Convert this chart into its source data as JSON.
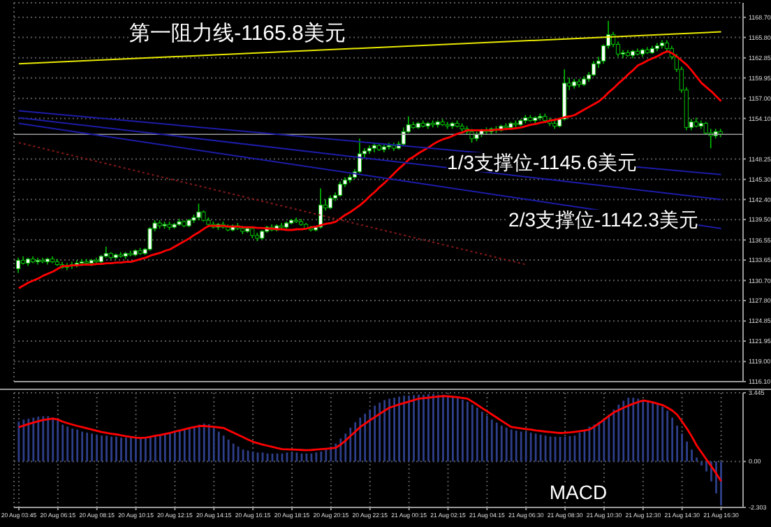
{
  "chart_data": [
    {
      "type": "candlestick",
      "color": "#00c000",
      "grid": true,
      "tick_labels": "y",
      "categories": [
        "20 Aug 03:45",
        null,
        null,
        null,
        null,
        null,
        null,
        null,
        "20 Aug 06:15",
        null,
        null,
        null,
        null,
        null,
        null,
        null,
        "20 Aug 08:15",
        null,
        null,
        null,
        null,
        null,
        null,
        null,
        "20 Aug 10:15",
        null,
        null,
        null,
        null,
        null,
        null,
        null,
        "20 Aug 12:15",
        null,
        null,
        null,
        null,
        null,
        null,
        null,
        "20 Aug 14:15",
        null,
        null,
        null,
        null,
        null,
        null,
        null,
        "20 Aug 16:15",
        null,
        null,
        null,
        null,
        null,
        null,
        null,
        "20 Aug 18:15",
        null,
        null,
        null,
        null,
        null,
        null,
        null,
        "20 Aug 20:15",
        null,
        null,
        null,
        null,
        null,
        null,
        null,
        "20 Aug 22:15",
        null,
        null,
        null,
        null,
        null,
        null,
        null,
        "21 Aug 00:15",
        null,
        null,
        null,
        null,
        null,
        null,
        null,
        "21 Aug 02:15",
        null,
        null,
        null,
        null,
        null,
        null,
        null,
        "21 Aug 04:15",
        null,
        null,
        null,
        null,
        null,
        null,
        null,
        "21 Aug 06:30",
        null,
        null,
        null,
        null,
        null,
        null,
        null,
        "21 Aug 08:30",
        null,
        null,
        null,
        null,
        null,
        null,
        null,
        "21 Aug 10:30",
        null,
        null,
        null,
        null,
        null,
        null,
        null,
        "21 Aug 12:30",
        null,
        null,
        null,
        null,
        null,
        null,
        null,
        "21 Aug 14:30",
        null,
        null,
        null,
        null,
        null,
        null,
        null,
        "21 Aug 16:30"
      ],
      "ylim": [
        1116.1,
        1170.8
      ],
      "yticks": [
        {
          "value": 1116.1,
          "label": "1116.10"
        },
        {
          "value": 1119.0,
          "label": "1119.00"
        },
        {
          "value": 1121.95,
          "label": "1121.95"
        },
        {
          "value": 1124.85,
          "label": "1124.85"
        },
        {
          "value": 1127.8,
          "label": "1127.80"
        },
        {
          "value": 1130.7,
          "label": "1130.70"
        },
        {
          "value": 1133.65,
          "label": "1133.65"
        },
        {
          "value": 1136.55,
          "label": "1136.55"
        },
        {
          "value": 1139.5,
          "label": "1139.50"
        },
        {
          "value": 1142.4,
          "label": "1142.40"
        },
        {
          "value": 1145.3,
          "label": "1145.30"
        },
        {
          "value": 1148.25,
          "label": "1148.25"
        },
        {
          "value": 1154.1,
          "label": "1154.10"
        },
        {
          "value": 1157.0,
          "label": "1157.00"
        },
        {
          "value": 1159.95,
          "label": "1159.95"
        },
        {
          "value": 1162.85,
          "label": "1162.85"
        },
        {
          "value": 1165.8,
          "label": "1165.80"
        },
        {
          "value": 1168.7,
          "label": "1168.70"
        }
      ],
      "ohlc": [
        [
          1132.4,
          1134.0,
          1131.8,
          1133.6
        ],
        [
          1133.6,
          1134.2,
          1133.0,
          1133.2
        ],
        [
          1133.2,
          1134.0,
          1132.8,
          1133.8
        ],
        [
          1133.8,
          1134.2,
          1133.2,
          1133.4
        ],
        [
          1133.4,
          1134.0,
          1133.0,
          1133.6
        ],
        [
          1133.6,
          1134.0,
          1133.2,
          1133.4
        ],
        [
          1133.4,
          1134.0,
          1133.0,
          1133.8
        ],
        [
          1133.8,
          1134.2,
          1133.2,
          1133.4
        ],
        [
          1133.4,
          1133.8,
          1132.8,
          1133.0
        ],
        [
          1133.0,
          1133.4,
          1132.4,
          1132.6
        ],
        [
          1132.6,
          1133.2,
          1132.2,
          1132.8
        ],
        [
          1132.8,
          1133.4,
          1132.4,
          1133.0
        ],
        [
          1133.0,
          1133.6,
          1132.6,
          1133.2
        ],
        [
          1133.2,
          1133.8,
          1132.8,
          1133.4
        ],
        [
          1133.4,
          1133.8,
          1133.0,
          1133.2
        ],
        [
          1133.2,
          1133.8,
          1132.8,
          1133.6
        ],
        [
          1133.6,
          1134.0,
          1133.2,
          1133.4
        ],
        [
          1133.4,
          1134.4,
          1133.2,
          1134.2
        ],
        [
          1134.2,
          1135.6,
          1134.0,
          1134.6
        ],
        [
          1134.6,
          1134.8,
          1133.8,
          1134.0
        ],
        [
          1134.0,
          1134.6,
          1133.8,
          1134.4
        ],
        [
          1134.4,
          1134.8,
          1134.0,
          1134.2
        ],
        [
          1134.2,
          1134.8,
          1133.8,
          1134.6
        ],
        [
          1134.6,
          1135.0,
          1134.2,
          1134.4
        ],
        [
          1134.4,
          1135.2,
          1134.2,
          1135.0
        ],
        [
          1135.0,
          1135.4,
          1134.4,
          1134.6
        ],
        [
          1134.6,
          1135.4,
          1134.4,
          1135.2
        ],
        [
          1135.2,
          1138.4,
          1135.0,
          1138.2
        ],
        [
          1138.2,
          1139.4,
          1137.8,
          1139.0
        ],
        [
          1139.0,
          1139.4,
          1138.2,
          1138.6
        ],
        [
          1138.6,
          1139.2,
          1138.2,
          1138.8
        ],
        [
          1138.8,
          1139.2,
          1138.0,
          1138.4
        ],
        [
          1138.4,
          1139.0,
          1138.2,
          1138.8
        ],
        [
          1138.8,
          1139.6,
          1138.6,
          1139.2
        ],
        [
          1139.2,
          1139.4,
          1138.4,
          1138.6
        ],
        [
          1138.6,
          1139.6,
          1138.4,
          1139.4
        ],
        [
          1139.4,
          1140.2,
          1139.0,
          1139.8
        ],
        [
          1139.8,
          1141.8,
          1139.4,
          1140.6
        ],
        [
          1140.6,
          1140.8,
          1139.2,
          1139.4
        ],
        [
          1139.4,
          1139.8,
          1138.6,
          1138.8
        ],
        [
          1138.8,
          1139.2,
          1138.2,
          1138.4
        ],
        [
          1138.4,
          1139.0,
          1138.0,
          1138.8
        ],
        [
          1138.8,
          1139.2,
          1138.2,
          1138.4
        ],
        [
          1138.4,
          1138.8,
          1137.8,
          1138.0
        ],
        [
          1138.0,
          1138.8,
          1137.8,
          1138.6
        ],
        [
          1138.6,
          1139.0,
          1138.0,
          1138.2
        ],
        [
          1138.2,
          1138.6,
          1137.4,
          1137.8
        ],
        [
          1137.8,
          1138.4,
          1137.6,
          1138.2
        ],
        [
          1138.2,
          1138.4,
          1136.8,
          1137.2
        ],
        [
          1137.2,
          1137.6,
          1136.4,
          1136.8
        ],
        [
          1136.8,
          1138.0,
          1136.6,
          1137.8
        ],
        [
          1137.8,
          1138.6,
          1137.6,
          1138.4
        ],
        [
          1138.4,
          1138.8,
          1137.8,
          1138.0
        ],
        [
          1138.0,
          1138.8,
          1137.8,
          1138.6
        ],
        [
          1138.6,
          1139.0,
          1138.2,
          1138.4
        ],
        [
          1138.4,
          1139.2,
          1138.2,
          1139.0
        ],
        [
          1139.0,
          1139.6,
          1138.8,
          1139.4
        ],
        [
          1139.4,
          1139.8,
          1139.0,
          1139.2
        ],
        [
          1139.2,
          1139.6,
          1138.6,
          1138.8
        ],
        [
          1138.8,
          1139.0,
          1138.0,
          1138.2
        ],
        [
          1138.2,
          1138.6,
          1137.8,
          1138.0
        ],
        [
          1138.0,
          1138.6,
          1137.8,
          1138.4
        ],
        [
          1138.4,
          1144.0,
          1138.2,
          1141.6
        ],
        [
          1141.6,
          1142.4,
          1140.8,
          1141.2
        ],
        [
          1141.2,
          1143.0,
          1141.0,
          1142.6
        ],
        [
          1142.6,
          1143.4,
          1142.2,
          1143.0
        ],
        [
          1143.0,
          1145.0,
          1142.8,
          1144.6
        ],
        [
          1144.6,
          1145.6,
          1144.2,
          1145.2
        ],
        [
          1145.2,
          1146.0,
          1144.8,
          1145.6
        ],
        [
          1145.6,
          1146.8,
          1145.4,
          1146.4
        ],
        [
          1146.4,
          1151.2,
          1146.2,
          1149.0
        ],
        [
          1149.0,
          1149.8,
          1148.4,
          1149.4
        ],
        [
          1149.4,
          1150.2,
          1149.0,
          1149.8
        ],
        [
          1149.8,
          1150.6,
          1149.2,
          1150.2
        ],
        [
          1150.2,
          1150.4,
          1149.4,
          1149.6
        ],
        [
          1149.6,
          1150.4,
          1149.2,
          1150.0
        ],
        [
          1150.0,
          1150.6,
          1149.6,
          1150.2
        ],
        [
          1150.2,
          1150.6,
          1149.4,
          1149.8
        ],
        [
          1149.8,
          1150.8,
          1149.6,
          1150.4
        ],
        [
          1150.4,
          1152.8,
          1150.2,
          1152.2
        ],
        [
          1152.2,
          1154.4,
          1152.0,
          1153.2
        ],
        [
          1153.2,
          1153.6,
          1152.6,
          1152.8
        ],
        [
          1152.8,
          1153.6,
          1152.6,
          1153.4
        ],
        [
          1153.4,
          1153.8,
          1152.8,
          1153.0
        ],
        [
          1153.0,
          1153.6,
          1152.6,
          1153.4
        ],
        [
          1153.4,
          1153.8,
          1152.8,
          1153.2
        ],
        [
          1153.2,
          1153.8,
          1152.8,
          1153.6
        ],
        [
          1153.6,
          1154.0,
          1153.0,
          1153.2
        ],
        [
          1153.2,
          1153.6,
          1152.6,
          1153.0
        ],
        [
          1153.0,
          1153.6,
          1152.6,
          1153.4
        ],
        [
          1153.4,
          1153.8,
          1152.8,
          1153.0
        ],
        [
          1153.0,
          1153.4,
          1152.2,
          1152.6
        ],
        [
          1152.6,
          1153.0,
          1151.8,
          1152.2
        ],
        [
          1152.2,
          1152.6,
          1150.6,
          1151.2
        ],
        [
          1151.2,
          1152.2,
          1150.8,
          1151.8
        ],
        [
          1151.8,
          1152.6,
          1151.4,
          1152.4
        ],
        [
          1152.4,
          1152.8,
          1151.8,
          1152.2
        ],
        [
          1152.2,
          1152.8,
          1151.8,
          1152.6
        ],
        [
          1152.6,
          1153.0,
          1152.0,
          1152.4
        ],
        [
          1152.4,
          1153.2,
          1152.2,
          1153.0
        ],
        [
          1153.0,
          1153.4,
          1152.4,
          1152.8
        ],
        [
          1152.8,
          1153.6,
          1152.6,
          1153.4
        ],
        [
          1153.4,
          1153.8,
          1152.8,
          1153.2
        ],
        [
          1153.2,
          1154.0,
          1153.0,
          1153.8
        ],
        [
          1153.8,
          1154.6,
          1153.4,
          1154.2
        ],
        [
          1154.2,
          1154.6,
          1153.6,
          1153.8
        ],
        [
          1153.8,
          1154.4,
          1153.4,
          1154.2
        ],
        [
          1154.2,
          1154.8,
          1153.8,
          1154.4
        ],
        [
          1154.4,
          1154.8,
          1153.6,
          1153.8
        ],
        [
          1153.8,
          1154.2,
          1153.0,
          1153.4
        ],
        [
          1153.4,
          1153.8,
          1152.6,
          1153.0
        ],
        [
          1153.0,
          1154.2,
          1152.8,
          1154.0
        ],
        [
          1154.0,
          1161.2,
          1153.8,
          1159.2
        ],
        [
          1159.2,
          1160.0,
          1158.2,
          1158.8
        ],
        [
          1158.8,
          1159.8,
          1158.4,
          1159.4
        ],
        [
          1159.4,
          1159.8,
          1158.6,
          1159.0
        ],
        [
          1159.0,
          1160.2,
          1158.8,
          1159.8
        ],
        [
          1159.8,
          1160.8,
          1159.4,
          1160.4
        ],
        [
          1160.4,
          1162.4,
          1160.2,
          1162.0
        ],
        [
          1162.0,
          1163.0,
          1161.4,
          1162.4
        ],
        [
          1162.4,
          1164.8,
          1162.0,
          1164.6
        ],
        [
          1164.6,
          1168.2,
          1164.2,
          1166.2
        ],
        [
          1166.2,
          1166.6,
          1164.4,
          1164.8
        ],
        [
          1164.8,
          1165.2,
          1163.0,
          1163.4
        ],
        [
          1163.4,
          1164.0,
          1162.8,
          1163.6
        ],
        [
          1163.6,
          1164.0,
          1163.0,
          1163.2
        ],
        [
          1163.2,
          1164.0,
          1162.8,
          1163.8
        ],
        [
          1163.8,
          1164.2,
          1163.2,
          1163.4
        ],
        [
          1163.4,
          1164.2,
          1163.0,
          1164.0
        ],
        [
          1164.0,
          1164.4,
          1163.4,
          1163.6
        ],
        [
          1163.6,
          1164.6,
          1163.4,
          1164.2
        ],
        [
          1164.2,
          1165.0,
          1163.8,
          1164.6
        ],
        [
          1164.6,
          1165.4,
          1164.2,
          1165.0
        ],
        [
          1165.0,
          1165.4,
          1163.8,
          1164.2
        ],
        [
          1164.2,
          1164.6,
          1162.6,
          1163.0
        ],
        [
          1163.0,
          1163.4,
          1160.8,
          1161.2
        ],
        [
          1161.2,
          1161.6,
          1157.8,
          1158.2
        ],
        [
          1158.2,
          1158.6,
          1152.4,
          1152.8
        ],
        [
          1152.8,
          1154.0,
          1152.4,
          1153.6
        ],
        [
          1153.6,
          1154.2,
          1152.8,
          1153.0
        ],
        [
          1153.0,
          1153.8,
          1152.6,
          1153.4
        ],
        [
          1153.4,
          1153.6,
          1151.8,
          1152.0
        ],
        [
          1152.0,
          1152.6,
          1149.8,
          1151.6
        ],
        [
          1151.6,
          1152.6,
          1151.2,
          1152.2
        ],
        [
          1152.2,
          1152.6,
          1151.4,
          1151.8
        ]
      ],
      "series": [
        {
          "type": "line",
          "color": "#ff0000",
          "values": [
            1129.6,
            1130.0,
            1130.4,
            1130.7,
            1131.0,
            1131.4,
            1131.7,
            1132.0,
            1132.4,
            1132.8,
            1132.8,
            1132.9,
            1132.9,
            1133.0,
            1133.0,
            1133.0,
            1133.1,
            1133.1,
            1133.2,
            1133.2,
            1133.3,
            1133.3,
            1133.4,
            1133.4,
            1133.6,
            1133.8,
            1134.0,
            1134.3,
            1134.5,
            1134.7,
            1135.0,
            1135.2,
            1135.6,
            1136.0,
            1136.4,
            1136.8,
            1137.3,
            1137.7,
            1138.2,
            1138.6,
            1138.6,
            1138.6,
            1138.6,
            1138.5,
            1138.5,
            1138.5,
            1138.4,
            1138.4,
            1138.4,
            1138.3,
            1138.3,
            1138.2,
            1138.2,
            1138.1,
            1138.1,
            1138.0,
            1138.0,
            1138.1,
            1138.1,
            1138.2,
            1138.4,
            1138.5,
            1138.7,
            1138.9,
            1139.0,
            1139.2,
            1139.7,
            1140.2,
            1140.6,
            1141.1,
            1141.6,
            1142.2,
            1142.9,
            1143.5,
            1144.2,
            1144.8,
            1145.5,
            1146.2,
            1146.9,
            1147.5,
            1148.2,
            1148.6,
            1149.1,
            1149.5,
            1149.9,
            1150.4,
            1150.8,
            1151.1,
            1151.3,
            1151.6,
            1151.9,
            1152.1,
            1152.4,
            1152.4,
            1152.4,
            1152.4,
            1152.4,
            1152.4,
            1152.5,
            1152.5,
            1152.6,
            1152.6,
            1152.7,
            1152.8,
            1153.0,
            1153.2,
            1153.3,
            1153.5,
            1153.6,
            1153.8,
            1153.9,
            1154.1,
            1154.3,
            1154.4,
            1154.6,
            1155.0,
            1155.4,
            1155.8,
            1156.2,
            1156.6,
            1157.2,
            1157.9,
            1158.5,
            1159.2,
            1159.8,
            1160.5,
            1161.1,
            1161.8,
            1162.1,
            1162.5,
            1162.8,
            1163.1,
            1163.5,
            1163.8,
            1163.5,
            1163.0,
            1162.4,
            1161.8,
            1161.0,
            1160.1,
            1159.2,
            1158.6,
            1158.0,
            1157.3,
            1156.6
          ]
        },
        {
          "type": "line",
          "color": "#e8e800",
          "x": [
            "20 Aug 03:45",
            "21 Aug 16:30"
          ],
          "values": [
            1162.0,
            1166.6
          ]
        },
        {
          "type": "line",
          "color": "#1c1ca8",
          "x": [
            "20 Aug 03:45",
            "21 Aug 16:30"
          ],
          "values": [
            1155.2,
            1146.0
          ]
        },
        {
          "type": "line",
          "color": "#1c1ca8",
          "x": [
            "20 Aug 03:45",
            "21 Aug 16:30"
          ],
          "values": [
            1154.2,
            1142.4
          ]
        },
        {
          "type": "line",
          "color": "#1c1ca8",
          "x": [
            "20 Aug 03:45",
            "21 Aug 16:30"
          ],
          "values": [
            1153.4,
            1138.2
          ]
        },
        {
          "type": "line",
          "color": "#8b1a1a",
          "line_style": "dotted",
          "x": [
            "20 Aug 03:45",
            "21 Aug 06:30"
          ],
          "values": [
            1150.6,
            1133.0
          ]
        }
      ],
      "ref_lines": [
        {
          "axis": "y",
          "value": 1151.8,
          "color": "#9a9a9a"
        }
      ],
      "annotations": [
        "第一阻力线-1165.8美元",
        "1/3支撑位-1145.6美元",
        "2/3支撑位-1142.3美元"
      ]
    },
    {
      "type": "bar",
      "grid": true,
      "categories": [
        "20 Aug 03:45",
        null,
        null,
        null,
        null,
        null,
        null,
        null,
        "20 Aug 06:15",
        null,
        null,
        null,
        null,
        null,
        null,
        null,
        "20 Aug 08:15",
        null,
        null,
        null,
        null,
        null,
        null,
        null,
        "20 Aug 10:15",
        null,
        null,
        null,
        null,
        null,
        null,
        null,
        "20 Aug 12:15",
        null,
        null,
        null,
        null,
        null,
        null,
        null,
        "20 Aug 14:15",
        null,
        null,
        null,
        null,
        null,
        null,
        null,
        "20 Aug 16:15",
        null,
        null,
        null,
        null,
        null,
        null,
        null,
        "20 Aug 18:15",
        null,
        null,
        null,
        null,
        null,
        null,
        null,
        "20 Aug 20:15",
        null,
        null,
        null,
        null,
        null,
        null,
        null,
        "20 Aug 22:15",
        null,
        null,
        null,
        null,
        null,
        null,
        null,
        "21 Aug 00:15",
        null,
        null,
        null,
        null,
        null,
        null,
        null,
        "21 Aug 02:15",
        null,
        null,
        null,
        null,
        null,
        null,
        null,
        "21 Aug 04:15",
        null,
        null,
        null,
        null,
        null,
        null,
        null,
        "21 Aug 06:30",
        null,
        null,
        null,
        null,
        null,
        null,
        null,
        "21 Aug 08:30",
        null,
        null,
        null,
        null,
        null,
        null,
        null,
        "21 Aug 10:30",
        null,
        null,
        null,
        null,
        null,
        null,
        null,
        "21 Aug 12:30",
        null,
        null,
        null,
        null,
        null,
        null,
        null,
        "21 Aug 14:30",
        null,
        null,
        null,
        null,
        null,
        null,
        null,
        "21 Aug 16:30"
      ],
      "ylim": [
        -2.303,
        3.445
      ],
      "yticks": [
        -2.303,
        {
          "value": 0,
          "label": "0.00"
        },
        3.445
      ],
      "series": [
        {
          "color": "#2e3f8a",
          "values": [
            2.0,
            2.1,
            2.15,
            2.2,
            2.25,
            2.27,
            2.27,
            2.2,
            2.05,
            1.85,
            1.75,
            1.65,
            1.6,
            1.5,
            1.45,
            1.4,
            1.35,
            1.3,
            1.3,
            1.25,
            1.25,
            1.2,
            1.2,
            1.2,
            1.2,
            1.2,
            1.2,
            1.25,
            1.3,
            1.35,
            1.4,
            1.45,
            1.5,
            1.55,
            1.6,
            1.65,
            1.75,
            1.85,
            1.9,
            1.87,
            1.7,
            1.5,
            1.3,
            1.1,
            0.9,
            0.75,
            0.6,
            0.55,
            0.5,
            0.45,
            0.45,
            0.4,
            0.4,
            0.4,
            0.4,
            0.45,
            0.45,
            0.45,
            0.4,
            0.4,
            0.4,
            0.45,
            0.5,
            0.6,
            0.75,
            0.9,
            1.15,
            1.4,
            1.7,
            1.97,
            2.2,
            2.4,
            2.6,
            2.8,
            2.95,
            3.08,
            3.15,
            3.2,
            3.25,
            3.3,
            3.3,
            3.33,
            3.35,
            3.35,
            3.38,
            3.38,
            3.35,
            3.35,
            3.3,
            3.25,
            3.2,
            3.1,
            3.0,
            2.85,
            2.7,
            2.5,
            2.3,
            2.1,
            1.95,
            1.8,
            1.7,
            1.6,
            1.55,
            1.5,
            1.5,
            1.45,
            1.4,
            1.35,
            1.3,
            1.25,
            1.24,
            1.24,
            1.25,
            1.28,
            1.3,
            1.45,
            1.6,
            1.75,
            1.85,
            2.0,
            2.1,
            2.35,
            2.6,
            2.85,
            3.05,
            3.2,
            3.2,
            3.15,
            3.1,
            3.05,
            3.0,
            2.9,
            2.75,
            2.55,
            2.2,
            1.8,
            1.4,
            1.0,
            0.6,
            0.2,
            -0.2,
            -0.5,
            -1.0,
            -1.6,
            -2.2
          ]
        },
        {
          "type": "line",
          "color": "#ff0000",
          "values": [
            1.72,
            1.8,
            1.88,
            1.95,
            2.02,
            2.08,
            2.12,
            2.15,
            2.1,
            2.0,
            1.92,
            1.85,
            1.78,
            1.72,
            1.66,
            1.6,
            1.54,
            1.48,
            1.43,
            1.39,
            1.36,
            1.31,
            1.27,
            1.23,
            1.2,
            1.18,
            1.2,
            1.24,
            1.29,
            1.33,
            1.38,
            1.43,
            1.5,
            1.56,
            1.62,
            1.68,
            1.73,
            1.78,
            1.78,
            1.76,
            1.74,
            1.71,
            1.68,
            1.56,
            1.45,
            1.33,
            1.22,
            1.1,
            0.99,
            0.92,
            0.85,
            0.79,
            0.73,
            0.67,
            0.62,
            0.61,
            0.6,
            0.59,
            0.58,
            0.57,
            0.58,
            0.6,
            0.62,
            0.64,
            0.66,
            0.69,
            0.85,
            1.05,
            1.28,
            1.5,
            1.73,
            1.9,
            2.07,
            2.23,
            2.39,
            2.55,
            2.7,
            2.78,
            2.86,
            2.93,
            3.0,
            3.08,
            3.15,
            3.18,
            3.2,
            3.23,
            3.26,
            3.28,
            3.27,
            3.25,
            3.22,
            3.19,
            3.15,
            3.0,
            2.84,
            2.68,
            2.52,
            2.36,
            2.2,
            2.04,
            1.88,
            1.73,
            1.7,
            1.66,
            1.63,
            1.6,
            1.56,
            1.53,
            1.5,
            1.48,
            1.45,
            1.43,
            1.44,
            1.46,
            1.49,
            1.52,
            1.56,
            1.6,
            1.75,
            1.92,
            2.1,
            2.28,
            2.46,
            2.58,
            2.7,
            2.8,
            2.9,
            2.98,
            3.06,
            3.02,
            2.97,
            2.9,
            2.83,
            2.7,
            2.55,
            2.34,
            2.0,
            1.65,
            1.25,
            0.8,
            0.45,
            0.1,
            -0.25,
            -0.6,
            -0.99
          ]
        }
      ],
      "annotations": [
        "MACD"
      ]
    }
  ]
}
